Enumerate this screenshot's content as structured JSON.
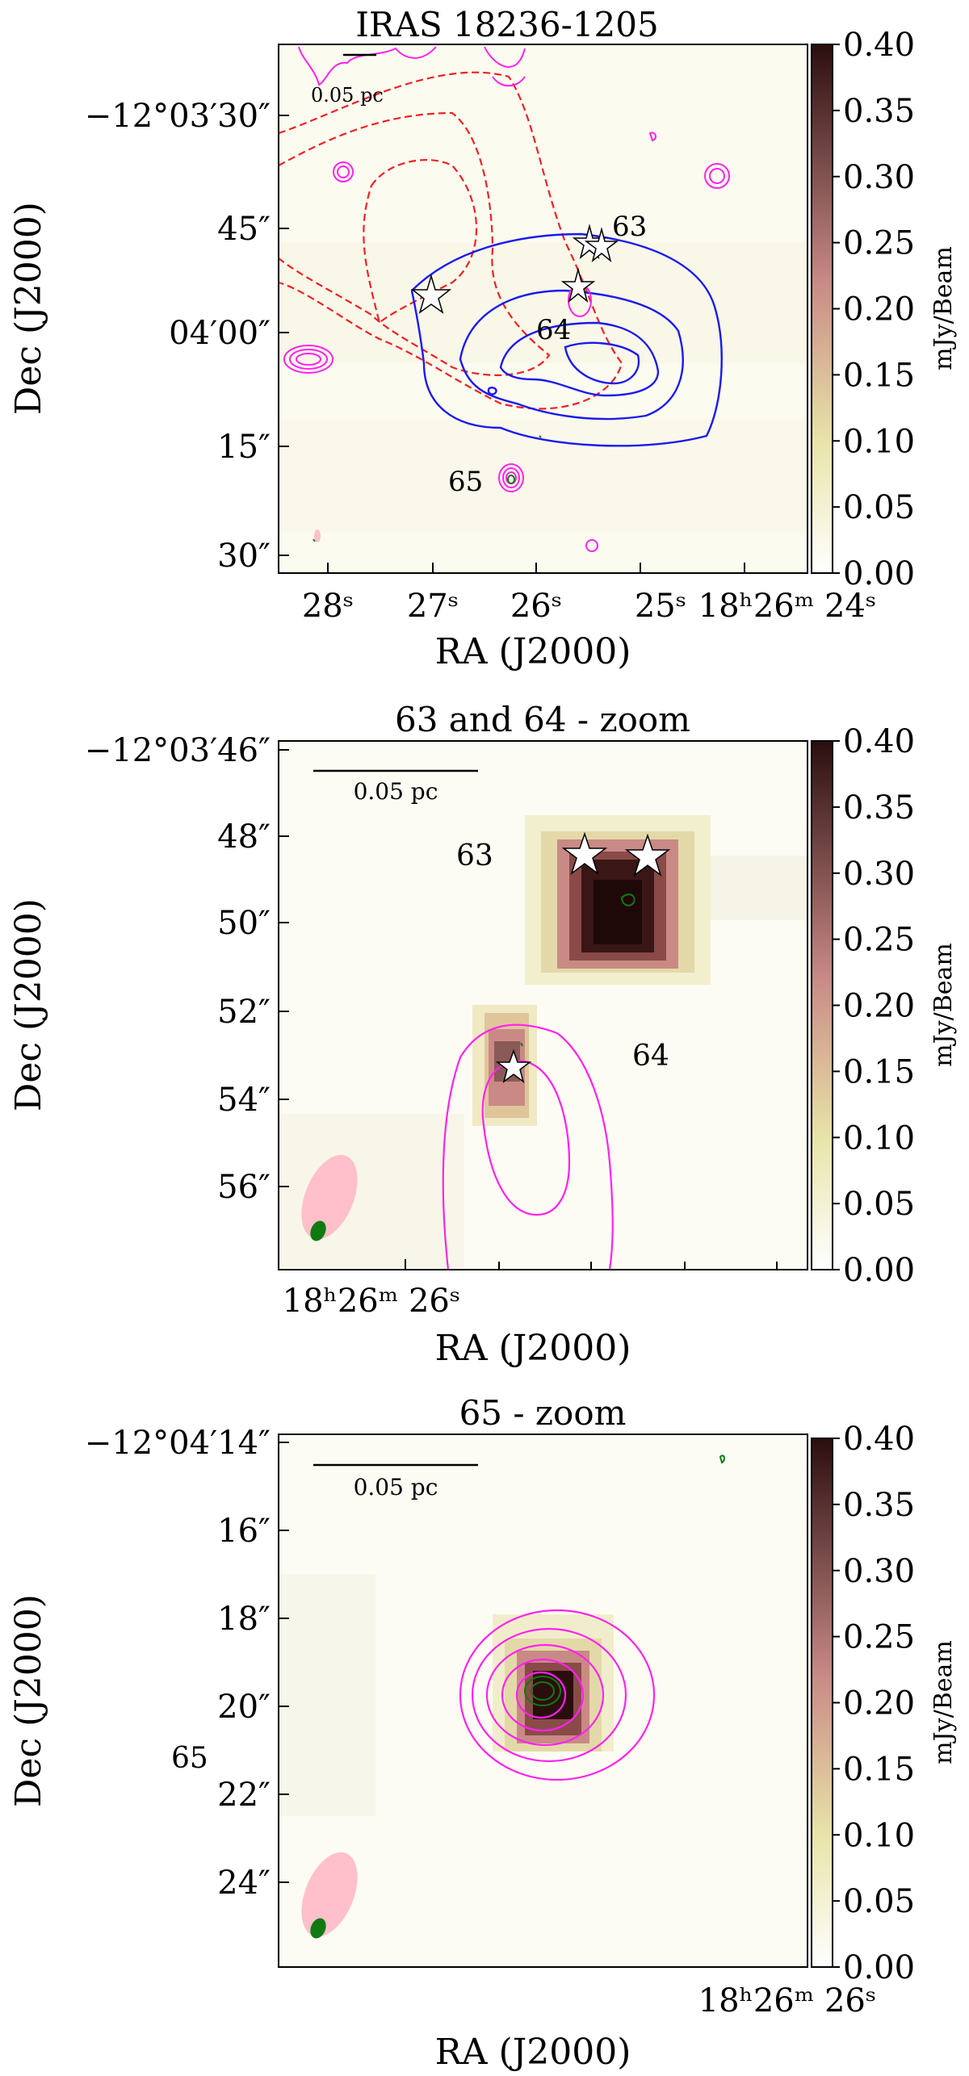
{
  "colors": {
    "cmap_low": "#ffffff",
    "cmap_mid1": "#e8e4a8",
    "cmap_mid2": "#c98a86",
    "cmap_high": "#2a0e0e",
    "magenta": "#ff22ee",
    "blue": "#1a1aee",
    "red": "#ee2222",
    "green": "#0f7a12",
    "beam_pink": "#ffc0cb"
  },
  "chart_data": [
    {
      "type": "heatmap",
      "title": "IRAS 18236-1205",
      "xlabel": "RA (J2000)",
      "ylabel": "Dec (J2000)",
      "yticks": [
        "−12°03′30″",
        "45″",
        "04′00″",
        "15″",
        "30″"
      ],
      "xticks": [
        "28ˢ",
        "27ˢ",
        "26ˢ",
        "25ˢ",
        "18ʰ26ᵐ 24ˢ"
      ],
      "colorbar_ticks": [
        "0.40",
        "0.35",
        "0.30",
        "0.25",
        "0.20",
        "0.15",
        "0.10",
        "0.05",
        "0.00"
      ],
      "colorbar_label": "mJy/Beam",
      "colorbar_range": [
        0.0,
        0.4
      ],
      "scale_bar": "0.05 pc",
      "sources": [
        "63",
        "64",
        "65"
      ],
      "contour_sets": [
        "magenta",
        "blue",
        "red-dashed",
        "green"
      ]
    },
    {
      "type": "heatmap",
      "title": "63 and 64 - zoom",
      "xlabel": "RA (J2000)",
      "ylabel": "Dec (J2000)",
      "yticks": [
        "−12°03′46″",
        "48″",
        "50″",
        "52″",
        "54″",
        "56″"
      ],
      "xticks": [
        "18ʰ26ᵐ 26ˢ"
      ],
      "colorbar_ticks": [
        "0.40",
        "0.35",
        "0.30",
        "0.25",
        "0.20",
        "0.15",
        "0.10",
        "0.05",
        "0.00"
      ],
      "colorbar_label": "mJy/Beam",
      "colorbar_range": [
        0.0,
        0.4
      ],
      "scale_bar": "0.05 pc",
      "sources": [
        "63",
        "64"
      ]
    },
    {
      "type": "heatmap",
      "title": "65 - zoom",
      "xlabel": "RA (J2000)",
      "ylabel": "Dec (J2000)",
      "yticks": [
        "−12°04′14″",
        "16″",
        "18″",
        "20″",
        "22″",
        "24″"
      ],
      "xticks": [
        "18ʰ26ᵐ 26ˢ"
      ],
      "colorbar_ticks": [
        "0.40",
        "0.35",
        "0.30",
        "0.25",
        "0.20",
        "0.15",
        "0.10",
        "0.05",
        "0.00"
      ],
      "colorbar_label": "mJy/Beam",
      "colorbar_range": [
        0.0,
        0.4
      ],
      "scale_bar": "0.05 pc",
      "sources": [
        "65"
      ]
    }
  ]
}
